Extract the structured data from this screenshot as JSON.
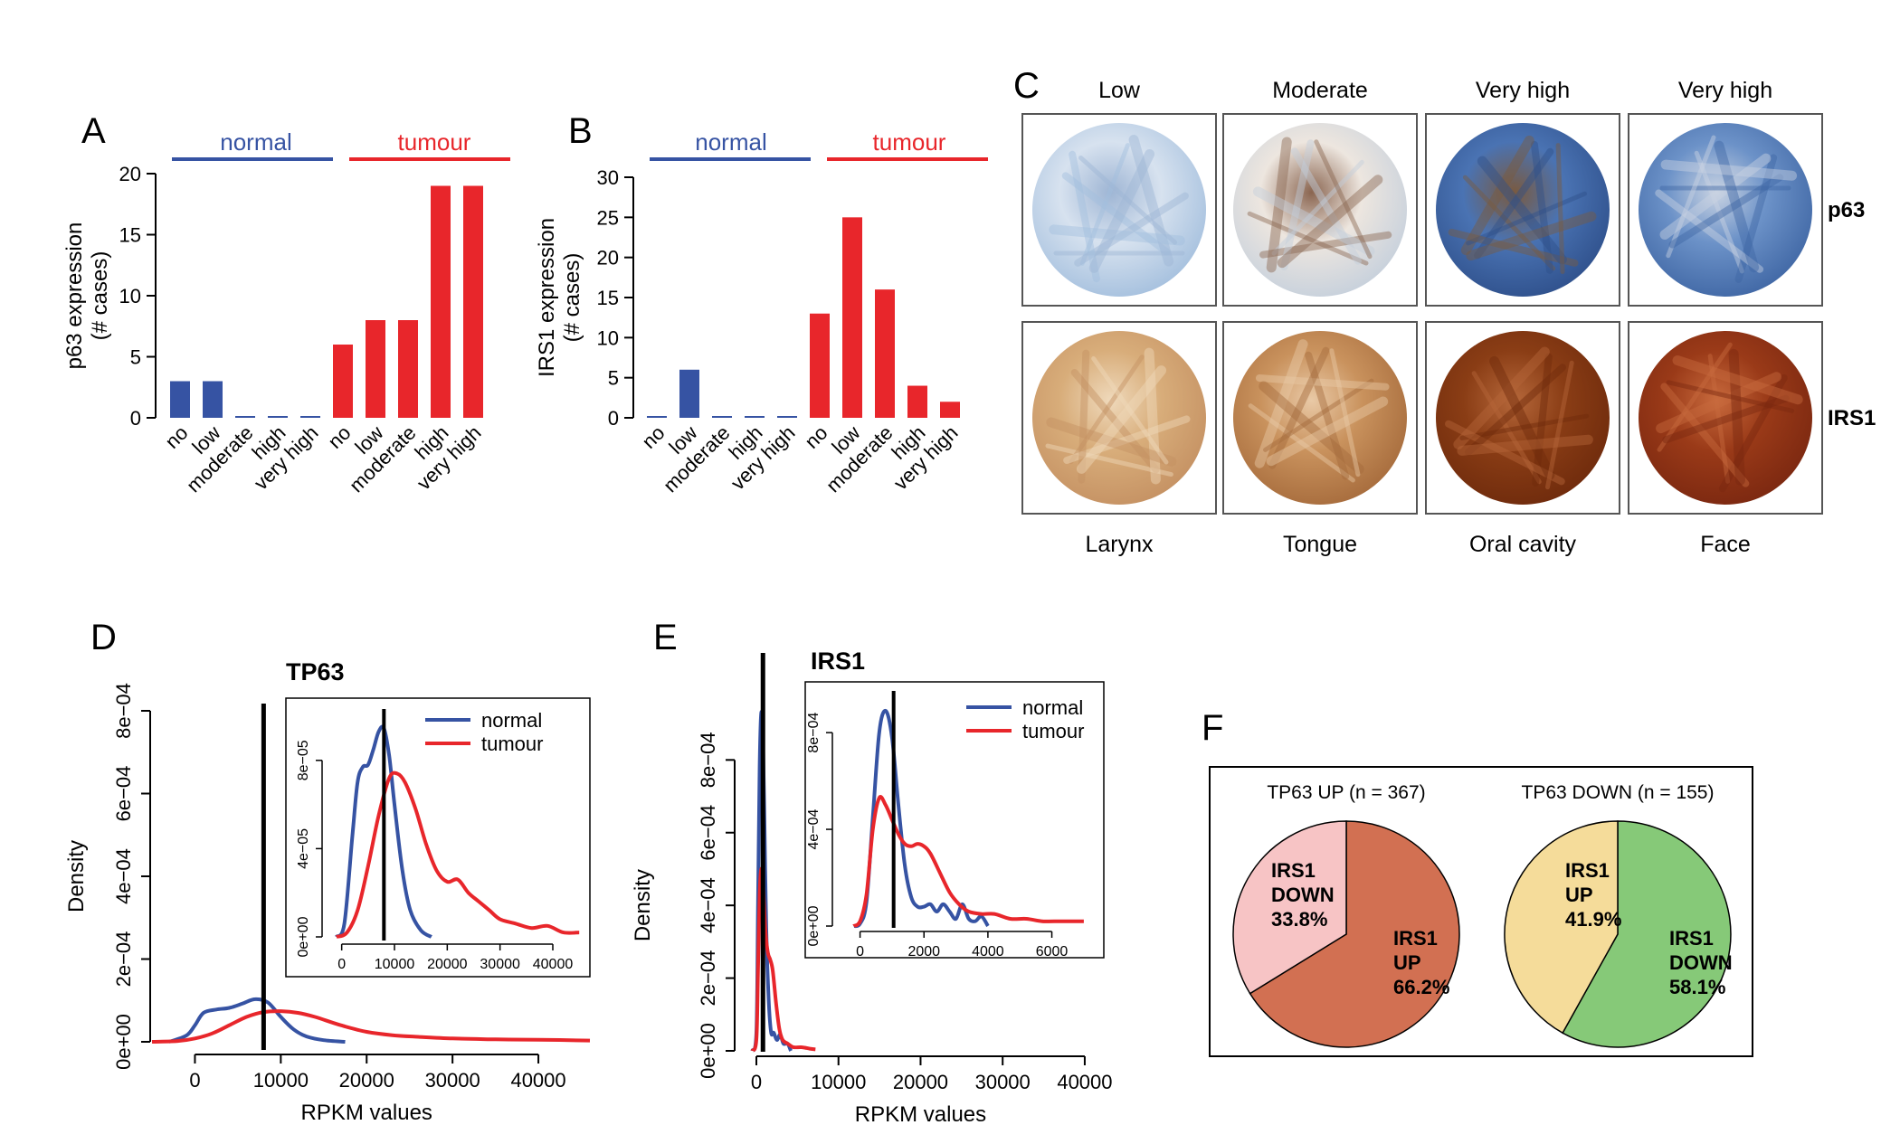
{
  "chart_data": [
    {
      "panel": "A",
      "type": "bar",
      "ylabel": "p63 expression (# cases)",
      "ylabel_lines": [
        "p63 expression",
        "(# cases)"
      ],
      "ylim": [
        0,
        20
      ],
      "yticks": [
        0,
        5,
        10,
        15,
        20
      ],
      "groups": [
        {
          "name": "normal",
          "color": "#3653a3",
          "categories": [
            "no",
            "low",
            "moderate",
            "high",
            "very high"
          ],
          "values": [
            3,
            3,
            0,
            0,
            0
          ]
        },
        {
          "name": "tumour",
          "color": "#e8262b",
          "categories": [
            "no",
            "low",
            "moderate",
            "high",
            "very high"
          ],
          "values": [
            6,
            8,
            8,
            19,
            19
          ]
        }
      ]
    },
    {
      "panel": "B",
      "type": "bar",
      "ylabel": "IRS1 expression (# cases)",
      "ylabel_lines": [
        "IRS1 expression",
        "(# cases)"
      ],
      "ylim": [
        0,
        30
      ],
      "yticks": [
        0,
        5,
        10,
        15,
        20,
        25,
        30
      ],
      "groups": [
        {
          "name": "normal",
          "color": "#3653a3",
          "categories": [
            "no",
            "low",
            "moderate",
            "high",
            "very high"
          ],
          "values": [
            0,
            6,
            0,
            0,
            0
          ]
        },
        {
          "name": "tumour",
          "color": "#e8262b",
          "categories": [
            "no",
            "low",
            "moderate",
            "high",
            "very high"
          ],
          "values": [
            13,
            25,
            16,
            4,
            2
          ]
        }
      ]
    },
    {
      "panel": "D",
      "type": "line",
      "title": "TP63",
      "xlabel": "RPKM values",
      "ylabel": "Density",
      "xlim": [
        -5000,
        46000
      ],
      "xticks": [
        0,
        10000,
        20000,
        30000,
        40000
      ],
      "xtick_labels": [
        "0",
        "10000",
        "20000",
        "30000",
        "40000"
      ],
      "ylim": [
        0,
        0.0008
      ],
      "yticks": [
        0,
        0.0002,
        0.0004,
        0.0006,
        0.0008
      ],
      "ytick_labels": [
        "0e+00",
        "2e−04",
        "4e−04",
        "6e−04",
        "8e−04"
      ],
      "vline": 8000,
      "series": [
        {
          "name": "normal",
          "color": "#3653a3",
          "x": [
            -3000,
            -1000,
            0,
            1000,
            2500,
            4000,
            5500,
            7000,
            8500,
            10000,
            11500,
            13000,
            15000,
            17500
          ],
          "y": [
            0,
            1.5e-05,
            4e-05,
            7e-05,
            7.8e-05,
            8.2e-05,
            9.2e-05,
            0.000103,
            9.5e-05,
            6e-05,
            3e-05,
            1.3e-05,
            4e-06,
            0
          ]
        },
        {
          "name": "tumour",
          "color": "#e8262b",
          "x": [
            -5000,
            -2000,
            0,
            2000,
            4000,
            6000,
            8000,
            10000,
            12000,
            14000,
            17000,
            20000,
            23000,
            26000,
            30000,
            35000,
            40000,
            46000
          ],
          "y": [
            0,
            2e-06,
            8e-06,
            2e-05,
            4e-05,
            6e-05,
            7.2e-05,
            7.4e-05,
            7e-05,
            6e-05,
            4e-05,
            2.4e-05,
            1.6e-05,
            1.2e-05,
            8e-06,
            6e-06,
            5e-06,
            3e-06
          ]
        }
      ],
      "inset": {
        "xlim": [
          -2000,
          46000
        ],
        "xticks": [
          0,
          10000,
          20000,
          30000,
          40000
        ],
        "xtick_labels": [
          "0",
          "10000",
          "20000",
          "30000",
          "40000"
        ],
        "ylim": [
          0,
          0.0001
        ],
        "yticks": [
          0,
          4e-05,
          8e-05
        ],
        "ytick_labels": [
          "0e+00",
          "4e−05",
          "8e−05"
        ],
        "vline": 8000,
        "series": [
          {
            "name": "normal",
            "color": "#3653a3",
            "x": [
              -1000,
              500,
              2000,
              3000,
              4000,
              5000,
              6000,
              7000,
              8000,
              9000,
              10000,
              11500,
              13000,
              15000,
              17000
            ],
            "y": [
              0,
              6e-06,
              4.5e-05,
              7e-05,
              7.7e-05,
              7.8e-05,
              8.5e-05,
              9.3e-05,
              9.45e-05,
              8.2e-05,
              6e-05,
              3e-05,
              1.2e-05,
              3e-06,
              0
            ]
          },
          {
            "name": "tumour",
            "color": "#e8262b",
            "x": [
              -1000,
              1000,
              3000,
              5000,
              7000,
              9000,
              10500,
              12000,
              14000,
              16000,
              18000,
              20000,
              22000,
              24000,
              26000,
              28000,
              30000,
              33000,
              36000,
              39000,
              42000,
              45000
            ],
            "y": [
              0,
              2e-06,
              1.2e-05,
              3.2e-05,
              5.5e-05,
              7.2e-05,
              7.4e-05,
              7e-05,
              5.8e-05,
              4.2e-05,
              3e-05,
              2.5e-05,
              2.6e-05,
              2e-05,
              1.6e-05,
              1.2e-05,
              8e-06,
              6e-06,
              4e-06,
              5e-06,
              2e-06,
              2e-06
            ]
          }
        ]
      }
    },
    {
      "panel": "E",
      "type": "line",
      "title": "IRS1",
      "xlabel": "RPKM values",
      "ylabel": "Density",
      "xlim": [
        0,
        41000
      ],
      "xticks": [
        0,
        10000,
        20000,
        30000,
        40000
      ],
      "xtick_labels": [
        "0",
        "10000",
        "20000",
        "30000",
        "40000"
      ],
      "ylim": [
        0,
        0.00095
      ],
      "yticks": [
        0,
        0.0002,
        0.0004,
        0.0006,
        0.0008
      ],
      "ytick_labels": [
        "0e+00",
        "2e−04",
        "4e−04",
        "6e−04",
        "8e−04"
      ],
      "vline": 800,
      "series": [
        {
          "name": "normal",
          "color": "#3653a3",
          "x": [
            -500,
            0,
            200,
            400,
            600,
            800,
            1000,
            1200,
            1500,
            1800,
            2100,
            2500,
            2900,
            3300,
            3800,
            4200
          ],
          "y": [
            0,
            5e-05,
            0.0004,
            0.00078,
            0.00093,
            0.00085,
            0.0006,
            0.00034,
            0.00014,
            5e-05,
            5e-05,
            3e-05,
            4.5e-05,
            2e-05,
            2e-05,
            0
          ]
        },
        {
          "name": "tumour",
          "color": "#e8262b",
          "x": [
            -500,
            0,
            200,
            400,
            600,
            800,
            1100,
            1400,
            1700,
            2000,
            2400,
            2800,
            3200,
            3800,
            4500,
            5500,
            6500,
            7200
          ],
          "y": [
            0,
            3e-05,
            0.00022,
            0.00043,
            0.0005,
            0.00046,
            0.00033,
            0.00027,
            0.00025,
            0.00022,
            0.00013,
            6e-05,
            3e-05,
            2e-05,
            1e-05,
            1e-05,
            6e-06,
            4e-06
          ]
        }
      ],
      "inset": {
        "xlim": [
          -300,
          7400
        ],
        "xticks": [
          0,
          2000,
          4000,
          6000
        ],
        "xtick_labels": [
          "0",
          "2000",
          "4000",
          "6000"
        ],
        "ylim": [
          0,
          0.00095
        ],
        "yticks": [
          0,
          0.0004,
          0.0008
        ],
        "ytick_labels": [
          "0e+00",
          "4e−04",
          "8e−04"
        ],
        "vline": 1050,
        "series": [
          {
            "name": "normal",
            "color": "#3653a3",
            "x": [
              -200,
              0,
              200,
              400,
              600,
              800,
              1000,
              1200,
              1400,
              1600,
              1800,
              2000,
              2200,
              2400,
              2600,
              2800,
              3000,
              3200,
              3400,
              3600,
              3800,
              4000
            ],
            "y": [
              0,
              1e-05,
              0.0001,
              0.00045,
              0.0008,
              0.00089,
              0.00078,
              0.0005,
              0.00025,
              0.00012,
              8e-05,
              8e-05,
              9e-05,
              6e-05,
              9e-05,
              6e-05,
              3e-05,
              9e-05,
              3e-05,
              2e-05,
              4e-05,
              0
            ]
          },
          {
            "name": "tumour",
            "color": "#e8262b",
            "x": [
              -200,
              0,
              200,
              400,
              600,
              800,
              1000,
              1200,
              1400,
              1600,
              1800,
              2000,
              2200,
              2500,
              2800,
              3100,
              3400,
              3800,
              4200,
              4700,
              5200,
              5700,
              6300,
              7000
            ],
            "y": [
              0,
              2e-05,
              0.00013,
              0.0004,
              0.00053,
              0.0005,
              0.00044,
              0.00038,
              0.00034,
              0.00033,
              0.00034,
              0.00033,
              0.0003,
              0.00022,
              0.00014,
              9e-05,
              6e-05,
              5e-05,
              5e-05,
              3e-05,
              3e-05,
              2e-05,
              2e-05,
              2e-05
            ]
          }
        ]
      }
    },
    {
      "panel": "F",
      "type": "pie",
      "pies": [
        {
          "title": "TP63 UP (n = 367)",
          "slices": [
            {
              "label": [
                "IRS1",
                "UP",
                "66.2%"
              ],
              "value": 66.2,
              "color": "#d27052"
            },
            {
              "label": [
                "IRS1",
                "DOWN",
                "33.8%"
              ],
              "value": 33.8,
              "color": "#f7c4c5"
            }
          ]
        },
        {
          "title": "TP63 DOWN (n = 155)",
          "slices": [
            {
              "label": [
                "IRS1",
                "DOWN",
                "58.1%"
              ],
              "value": 58.1,
              "color": "#86c978"
            },
            {
              "label": [
                "IRS1",
                "UP",
                "41.9%"
              ],
              "value": 41.9,
              "color": "#f5dc9a"
            }
          ]
        }
      ]
    }
  ],
  "panel_labels": {
    "a": "A",
    "b": "B",
    "c": "C",
    "d": "D",
    "e": "E",
    "f": "F"
  },
  "group_labels": {
    "normal": "normal",
    "tumour": "tumour"
  },
  "legend": {
    "normal": "normal",
    "tumour": "tumour"
  },
  "tma": {
    "columns": [
      "Low",
      "Moderate",
      "Very high",
      "Very high"
    ],
    "sites": [
      "Larynx",
      "Tongue",
      "Oral cavity",
      "Face"
    ],
    "rows": [
      "p63",
      "IRS1"
    ],
    "colors": {
      "p63": [
        [
          "#d7e2ef",
          "#a2bedd",
          "#9eb5d4"
        ],
        [
          "#ede6df",
          "#c4cfdc",
          "#8a6550"
        ],
        [
          "#4a73b3",
          "#2e4f8a",
          "#7a5a3f"
        ],
        [
          "#6c92c8",
          "#3e65a3",
          "#c9d3e2"
        ]
      ],
      "IRS1": [
        [
          "#d8ad7a",
          "#c49062",
          "#efd9bb"
        ],
        [
          "#c9925d",
          "#a56a3b",
          "#e9c9a6"
        ],
        [
          "#8a3d15",
          "#6e2a0c",
          "#b5673a"
        ],
        [
          "#9a3a18",
          "#7a2710",
          "#c86a3d"
        ]
      ]
    }
  }
}
